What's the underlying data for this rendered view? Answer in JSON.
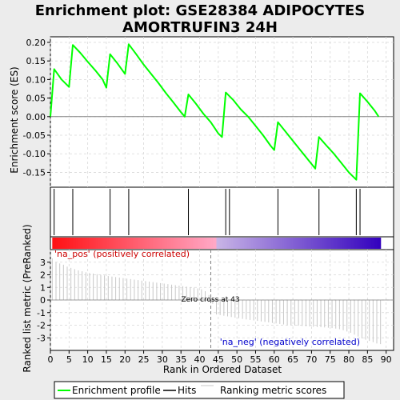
{
  "chart_data": {
    "type": "line",
    "title_line1": "Enrichment plot: GSE28384 ADIPOCYTES",
    "title_line2": "AMORTRUFIN3 24H",
    "ylabel_top": "Enrichment score (ES)",
    "ylabel_bottom": "Ranked list metric (PreRanked)",
    "xlabel": "Rank in Ordered Dataset",
    "xlim": [
      0,
      92
    ],
    "es_ylim": [
      -0.19,
      0.215
    ],
    "metric_ylim": [
      -4,
      4
    ],
    "x_ticks": [
      "0",
      "5",
      "10",
      "15",
      "20",
      "25",
      "30",
      "35",
      "40",
      "45",
      "50",
      "55",
      "60",
      "65",
      "70",
      "75",
      "80",
      "85",
      "90"
    ],
    "es_ticks": [
      "0.20",
      "0.15",
      "0.10",
      "0.05",
      "0.00",
      "-0.05",
      "-0.10",
      "-0.15"
    ],
    "metric_ticks": [
      "3",
      "2",
      "1",
      "0",
      "-1",
      "-2",
      "-3"
    ],
    "series": [
      {
        "name": "Enrichment profile",
        "color": "#00ff00",
        "x": [
          0,
          1,
          3,
          5,
          6,
          8,
          10,
          12,
          14,
          15,
          16,
          18,
          20,
          21,
          23,
          25,
          27,
          29,
          31,
          33,
          35,
          36,
          37,
          39,
          41,
          43,
          45,
          46,
          47,
          49,
          51,
          53,
          55,
          57,
          59,
          60,
          61,
          63,
          65,
          67,
          69,
          71,
          72,
          74,
          76,
          78,
          80,
          81,
          82,
          83,
          85,
          87,
          88
        ],
        "y": [
          0.0,
          0.128,
          0.1,
          0.08,
          0.193,
          0.172,
          0.148,
          0.125,
          0.1,
          0.078,
          0.168,
          0.143,
          0.115,
          0.195,
          0.168,
          0.14,
          0.115,
          0.09,
          0.063,
          0.038,
          0.012,
          0.0,
          0.06,
          0.035,
          0.008,
          -0.015,
          -0.045,
          -0.055,
          0.065,
          0.045,
          0.02,
          0.0,
          -0.025,
          -0.05,
          -0.078,
          -0.09,
          -0.015,
          -0.04,
          -0.065,
          -0.09,
          -0.115,
          -0.14,
          -0.055,
          -0.078,
          -0.1,
          -0.125,
          -0.15,
          -0.16,
          -0.17,
          0.063,
          0.04,
          0.015,
          0.0
        ]
      }
    ],
    "hits": [
      1,
      6,
      16,
      21,
      37,
      47,
      48,
      61,
      72,
      82,
      83
    ],
    "metric_scores": [
      3.3,
      3.0,
      2.9,
      2.8,
      2.65,
      2.55,
      2.45,
      2.35,
      2.28,
      2.2,
      2.15,
      2.1,
      2.05,
      2.0,
      1.95,
      1.9,
      1.86,
      1.82,
      1.78,
      1.74,
      1.7,
      1.66,
      1.62,
      1.58,
      1.54,
      1.5,
      1.46,
      1.42,
      1.38,
      1.34,
      1.3,
      1.26,
      1.22,
      1.18,
      1.14,
      1.1,
      1.06,
      1.02,
      0.98,
      0.92,
      0.85,
      0.7,
      0.4,
      -0.3,
      -1.15,
      -1.2,
      -1.25,
      -1.3,
      -1.35,
      -1.4,
      -1.45,
      -1.5,
      -1.54,
      -1.58,
      -1.62,
      -1.66,
      -1.7,
      -1.74,
      -1.78,
      -1.82,
      -1.86,
      -1.9,
      -1.94,
      -1.98,
      -2.0,
      -2.02,
      -2.04,
      -2.06,
      -2.08,
      -2.1,
      -2.12,
      -2.14,
      -2.16,
      -2.18,
      -2.2,
      -2.23,
      -2.27,
      -2.32,
      -2.4,
      -2.5,
      -2.6,
      -2.75,
      -2.9,
      -3.05,
      -3.15,
      -3.25,
      -3.35,
      -3.45,
      -3.5
    ],
    "zero_cross_label": "Zero cross at 43",
    "zero_cross_x": 43,
    "pos_label": "'na_pos' (positively correlated)",
    "neg_label": "'na_neg' (negatively correlated)",
    "legend": {
      "enrichment": "Enrichment profile",
      "hits": "Hits",
      "ranking": "Ranking metric scores"
    },
    "colors": {
      "es_line": "#00ff00",
      "pos_text": "#cc0000",
      "neg_text": "#0000cc",
      "hit_line": "#000000",
      "metric_line": "#c8c8c8",
      "zero_line": "#808080",
      "grid": "#d8d8d8"
    }
  }
}
